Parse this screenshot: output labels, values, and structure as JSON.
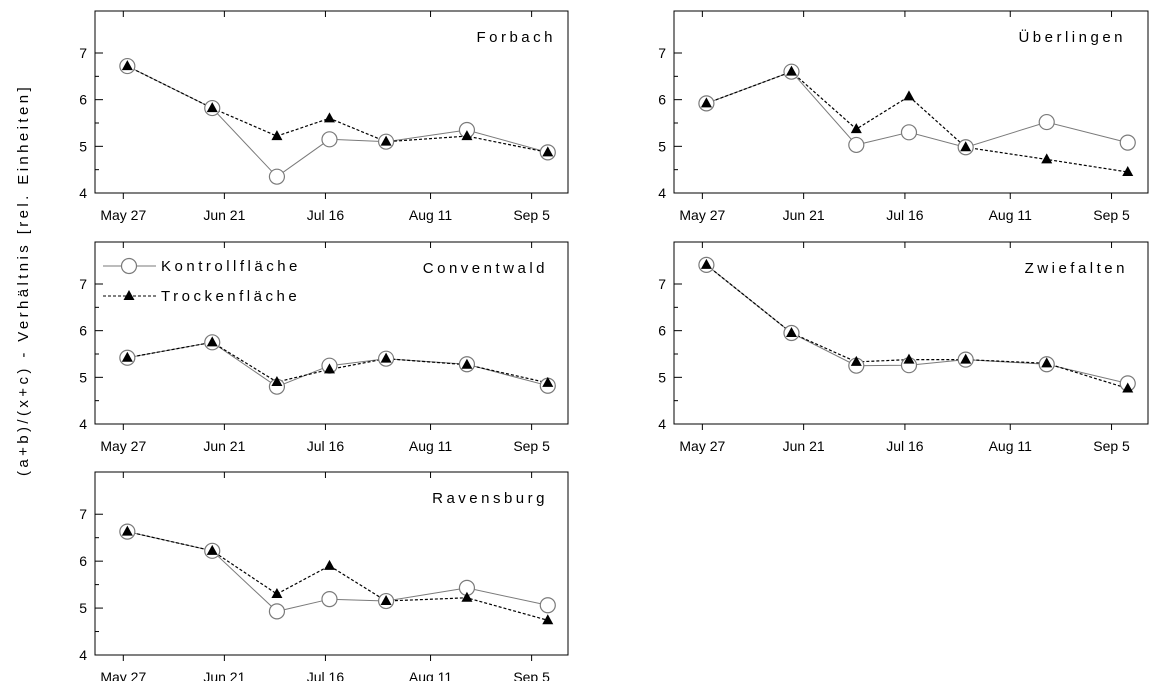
{
  "figure": {
    "ylabel": "(a+b)/(x+c) - Verhältnis  [rel. Einheiten]"
  },
  "chart_data": {
    "type": "line",
    "xlabel": "",
    "ylabel": "(a+b)/(x+c) - Verhältnis  [rel. Einheiten]",
    "x_ticks": [
      "May 27",
      "Jun 21",
      "Jul 16",
      "Aug 11",
      "Sep 5"
    ],
    "y_ticks": [
      4,
      5,
      6,
      7
    ],
    "ylim": [
      4,
      7.9
    ],
    "legend": {
      "placement": "top-left of Conventwald panel",
      "entries": [
        {
          "label": "Kontrollfläche",
          "marker": "open-circle",
          "line": "solid",
          "color": "#7a7a7a"
        },
        {
          "label": "Trockenfläche",
          "marker": "filled-triangle",
          "line": "dashed",
          "color": "#000000"
        }
      ]
    },
    "panels": [
      {
        "title": "Forbach",
        "x": [
          "May 28",
          "Jun 18",
          "Jul 4",
          "Jul 17",
          "Jul 31",
          "Aug 20",
          "Sep 9"
        ],
        "series": [
          {
            "name": "Kontrollfläche",
            "values": [
              6.72,
              5.82,
              4.35,
              5.15,
              5.1,
              5.35,
              4.87
            ]
          },
          {
            "name": "Trockenfläche",
            "values": [
              6.72,
              5.82,
              5.22,
              5.6,
              5.1,
              5.22,
              4.87
            ]
          }
        ]
      },
      {
        "title": "Überlingen",
        "x": [
          "May 28",
          "Jun 18",
          "Jul 4",
          "Jul 17",
          "Jul 31",
          "Aug 20",
          "Sep 9"
        ],
        "series": [
          {
            "name": "Kontrollfläche",
            "values": [
              5.92,
              6.6,
              5.03,
              5.3,
              4.98,
              5.52,
              5.08
            ]
          },
          {
            "name": "Trockenfläche",
            "values": [
              5.92,
              6.6,
              5.37,
              6.07,
              4.98,
              4.72,
              4.45
            ]
          }
        ]
      },
      {
        "title": "Conventwald",
        "x": [
          "May 28",
          "Jun 18",
          "Jul 4",
          "Jul 17",
          "Jul 31",
          "Aug 20",
          "Sep 9"
        ],
        "series": [
          {
            "name": "Kontrollfläche",
            "values": [
              5.42,
              5.75,
              4.8,
              5.25,
              5.4,
              5.28,
              4.82
            ]
          },
          {
            "name": "Trockenfläche",
            "values": [
              5.42,
              5.75,
              4.9,
              5.17,
              5.4,
              5.27,
              4.88
            ]
          }
        ]
      },
      {
        "title": "Zwiefalten",
        "x": [
          "May 28",
          "Jun 18",
          "Jul 4",
          "Jul 17",
          "Jul 31",
          "Aug 20",
          "Sep 9"
        ],
        "series": [
          {
            "name": "Kontrollfläche",
            "values": [
              7.41,
              5.95,
              5.25,
              5.26,
              5.38,
              5.28,
              4.87
            ]
          },
          {
            "name": "Trockenfläche",
            "values": [
              7.41,
              5.95,
              5.33,
              5.38,
              5.38,
              5.3,
              4.76
            ]
          }
        ]
      },
      {
        "title": "Ravensburg",
        "x": [
          "May 28",
          "Jun 18",
          "Jul 4",
          "Jul 17",
          "Jul 31",
          "Aug 20",
          "Sep 9"
        ],
        "series": [
          {
            "name": "Kontrollfläche",
            "values": [
              6.63,
              6.22,
              4.93,
              5.19,
              5.15,
              5.43,
              5.06
            ]
          },
          {
            "name": "Trockenfläche",
            "values": [
              6.63,
              6.22,
              5.3,
              5.9,
              5.15,
              5.22,
              4.74
            ]
          }
        ]
      }
    ]
  }
}
